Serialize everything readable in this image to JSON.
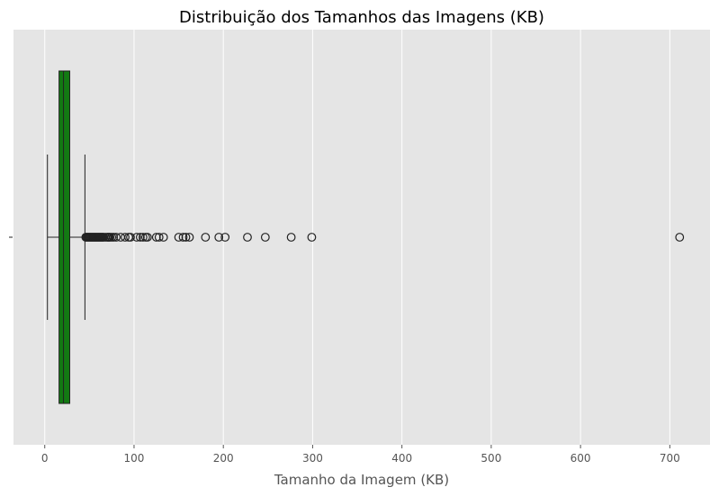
{
  "chart_data": {
    "type": "boxplot",
    "orientation": "horizontal",
    "title": "Distribuição dos Tamanhos das Imagens (KB)",
    "xlabel": "Tamanho da Imagem (KB)",
    "ylabel": "",
    "xlim": [
      -35,
      745
    ],
    "x_ticks": [
      0,
      100,
      200,
      300,
      400,
      500,
      600,
      700
    ],
    "x_tick_labels": [
      "0",
      "100",
      "200",
      "300",
      "400",
      "500",
      "600",
      "700"
    ],
    "grid": true,
    "colors": {
      "box_fill": "#137a13",
      "axes_background": "#e5e5e5",
      "grid": "#ffffff",
      "lines": "#222222"
    },
    "box": {
      "whisker_low": 3,
      "q1": 16,
      "median": 21,
      "q3": 28,
      "whisker_high": 45
    },
    "outliers": [
      46,
      47,
      48,
      49,
      50,
      51,
      52,
      53,
      54,
      55,
      56,
      57,
      58,
      59,
      60,
      61,
      62,
      63,
      64,
      65,
      66,
      68,
      70,
      71,
      72,
      73,
      75,
      77,
      80,
      85,
      90,
      94,
      96,
      103,
      107,
      110,
      113,
      115,
      125,
      128,
      133,
      150,
      155,
      158,
      162,
      180,
      195,
      202,
      227,
      247,
      276,
      299,
      711
    ]
  }
}
